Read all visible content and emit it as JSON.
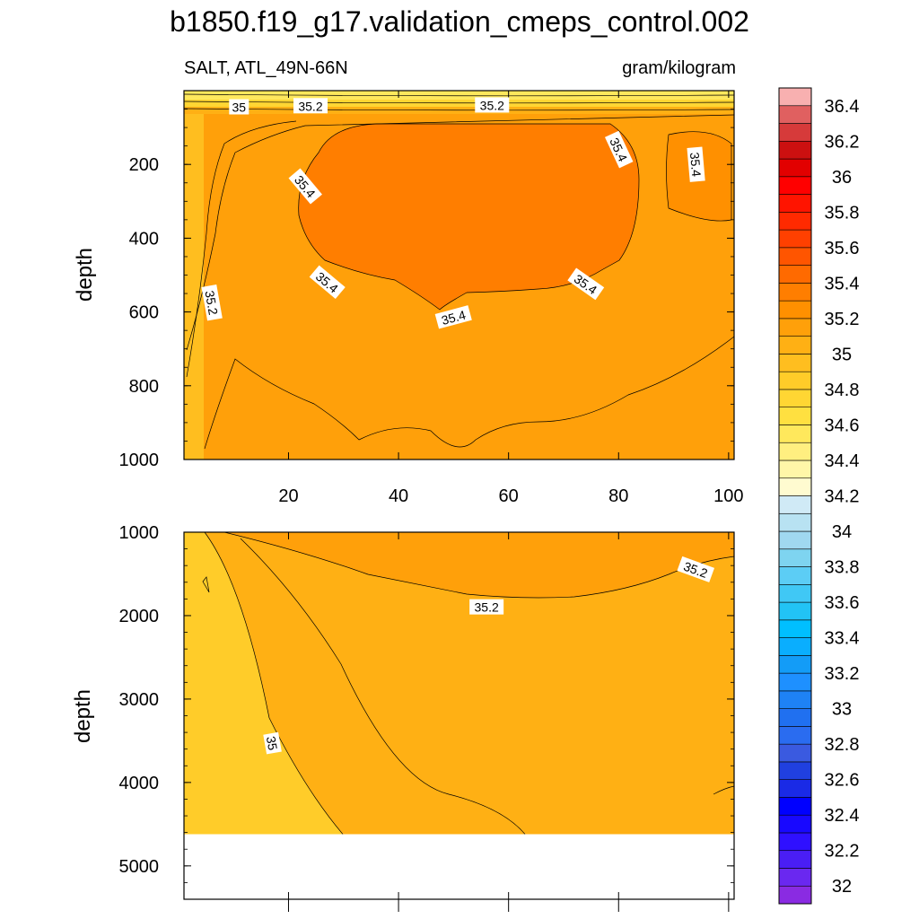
{
  "chart_data": {
    "type": "contour",
    "title": "b1850.f19_g17.validation_cmeps_control.002",
    "left_subtitle": "SALT, ATL_49N-66N",
    "right_subtitle": "gram/kilogram",
    "ylabel": "depth",
    "x_range": [
      1,
      101
    ],
    "x_ticks": [
      20,
      40,
      60,
      80,
      100
    ],
    "top_panel": {
      "ylim": [
        0,
        1000
      ],
      "y_ticks": [
        200,
        400,
        600,
        800,
        1000
      ]
    },
    "bottom_panel": {
      "ylim": [
        1000,
        5400
      ],
      "y_ticks": [
        1000,
        2000,
        3000,
        4000,
        5000
      ],
      "data_bottom_depth": 4620
    },
    "contour_labels_top": [
      {
        "text": "35",
        "x": 11,
        "y": 45,
        "angle": 0
      },
      {
        "text": "35.2",
        "x": 24,
        "y": 42,
        "angle": 0
      },
      {
        "text": "35.2",
        "x": 57,
        "y": 40,
        "angle": 0
      },
      {
        "text": "35.4",
        "x": 80,
        "y": 160,
        "angle": 65
      },
      {
        "text": "35.4",
        "x": 94,
        "y": 200,
        "angle": 85
      },
      {
        "text": "35.4",
        "x": 23,
        "y": 260,
        "angle": 50
      },
      {
        "text": "35.4",
        "x": 27,
        "y": 520,
        "angle": 40
      },
      {
        "text": "35.4",
        "x": 50,
        "y": 615,
        "angle": -15
      },
      {
        "text": "35.4",
        "x": 74,
        "y": 525,
        "angle": 35
      },
      {
        "text": "35.2",
        "x": 6,
        "y": 575,
        "angle": 80
      }
    ],
    "contour_labels_bottom": [
      {
        "text": "35.2",
        "x": 56,
        "y": 1900,
        "angle": 0
      },
      {
        "text": "35.2",
        "x": 94,
        "y": 1450,
        "angle": 20
      },
      {
        "text": "35",
        "x": 17,
        "y": 3530,
        "angle": 80
      }
    ],
    "colorbar": {
      "levels": [
        32,
        32.1,
        32.2,
        32.3,
        32.4,
        32.5,
        32.6,
        32.7,
        32.8,
        32.9,
        33,
        33.1,
        33.2,
        33.3,
        33.4,
        33.5,
        33.6,
        33.7,
        33.8,
        33.9,
        34,
        34.1,
        34.2,
        34.3,
        34.4,
        34.5,
        34.6,
        34.7,
        34.8,
        34.9,
        35,
        35.1,
        35.2,
        35.3,
        35.4,
        35.5,
        35.6,
        35.7,
        35.8,
        35.9,
        36,
        36.1,
        36.2,
        36.3,
        36.4,
        36.5
      ],
      "tick_labels": [
        "32",
        "32.2",
        "32.4",
        "32.6",
        "32.8",
        "33",
        "33.2",
        "33.4",
        "33.6",
        "33.8",
        "34",
        "34.2",
        "34.4",
        "34.6",
        "34.8",
        "35",
        "35.2",
        "35.4",
        "35.6",
        "35.8",
        "36",
        "36.2",
        "36.4"
      ],
      "colors": [
        "#8a2be2",
        "#6a28f0",
        "#4a1ef5",
        "#2f10ff",
        "#1808ff",
        "#0000ff",
        "#1a2ae6",
        "#2040e0",
        "#3a5ae0",
        "#2a6cf0",
        "#2070f0",
        "#1e82f5",
        "#1e90ff",
        "#139cf7",
        "#0aaefe",
        "#00bfff",
        "#22c3f5",
        "#40c8f5",
        "#5ccdf5",
        "#7ed4f0",
        "#a0d8f0",
        "#b8e2f2",
        "#d0eaf6",
        "#fffbd0",
        "#fff6a8",
        "#ffef80",
        "#ffe85c",
        "#ffe040",
        "#ffd633",
        "#ffcc29",
        "#ffbe1f",
        "#ffb014",
        "#ffa00a",
        "#ff9000",
        "#ff7e00",
        "#ff6a00",
        "#ff5500",
        "#ff4000",
        "#ff2a00",
        "#ff1400",
        "#ff0000",
        "#e20000",
        "#cc1010",
        "#d63a3a",
        "#e06060",
        "#f8b0b0"
      ]
    }
  }
}
